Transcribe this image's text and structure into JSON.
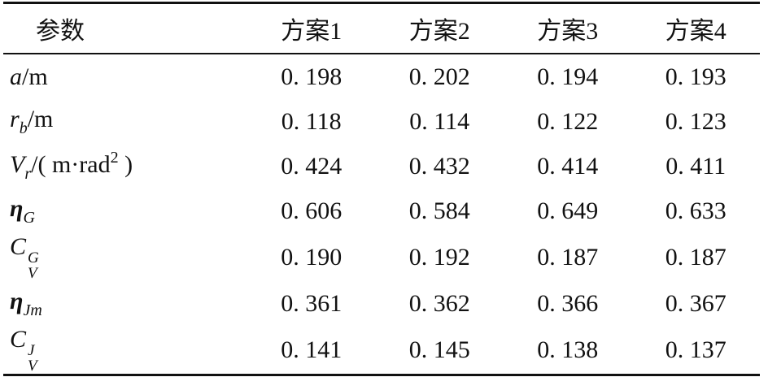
{
  "table": {
    "header": [
      "参数",
      "方案1",
      "方案2",
      "方案3",
      "方案4"
    ],
    "rows": [
      {
        "label": [
          {
            "text": "a",
            "style": "italic"
          },
          {
            "text": "/m",
            "style": "normal"
          }
        ],
        "values": [
          "0. 198",
          "0. 202",
          "0. 194",
          "0. 193"
        ]
      },
      {
        "label": [
          {
            "text": "r",
            "style": "italic"
          },
          {
            "text": "b",
            "style": "italic sub"
          },
          {
            "text": "/m",
            "style": "normal"
          }
        ],
        "values": [
          "0. 118",
          "0. 114",
          "0. 122",
          "0. 123"
        ]
      },
      {
        "label": [
          {
            "text": "V",
            "style": "italic"
          },
          {
            "text": "r",
            "style": "italic sub"
          },
          {
            "text": "/( m·rad",
            "style": "normal"
          },
          {
            "text": "2",
            "style": "sup"
          },
          {
            "text": " )",
            "style": "normal"
          }
        ],
        "values": [
          "0. 424",
          "0. 432",
          "0. 414",
          "0. 411"
        ]
      },
      {
        "label": [
          {
            "text": "η",
            "style": "italic bold"
          },
          {
            "text": "G",
            "style": "italic sub"
          }
        ],
        "values": [
          "0. 606",
          "0. 584",
          "0. 649",
          "0. 633"
        ]
      },
      {
        "label": [
          {
            "text": "C",
            "style": "italic"
          },
          {
            "text": "G",
            "style": "italic supsub-top"
          },
          {
            "text": "V",
            "style": "italic supsub-bottom"
          }
        ],
        "values": [
          "0. 190",
          "0. 192",
          "0. 187",
          "0. 187"
        ]
      },
      {
        "label": [
          {
            "text": "η",
            "style": "italic bold"
          },
          {
            "text": "Jm",
            "style": "italic sub"
          }
        ],
        "values": [
          "0. 361",
          "0. 362",
          "0. 366",
          "0. 367"
        ]
      },
      {
        "label": [
          {
            "text": "C",
            "style": "italic"
          },
          {
            "text": "J",
            "style": "italic supsub-top"
          },
          {
            "text": "V",
            "style": "italic supsub-bottom"
          }
        ],
        "values": [
          "0. 141",
          "0. 145",
          "0. 138",
          "0. 137"
        ]
      }
    ]
  }
}
